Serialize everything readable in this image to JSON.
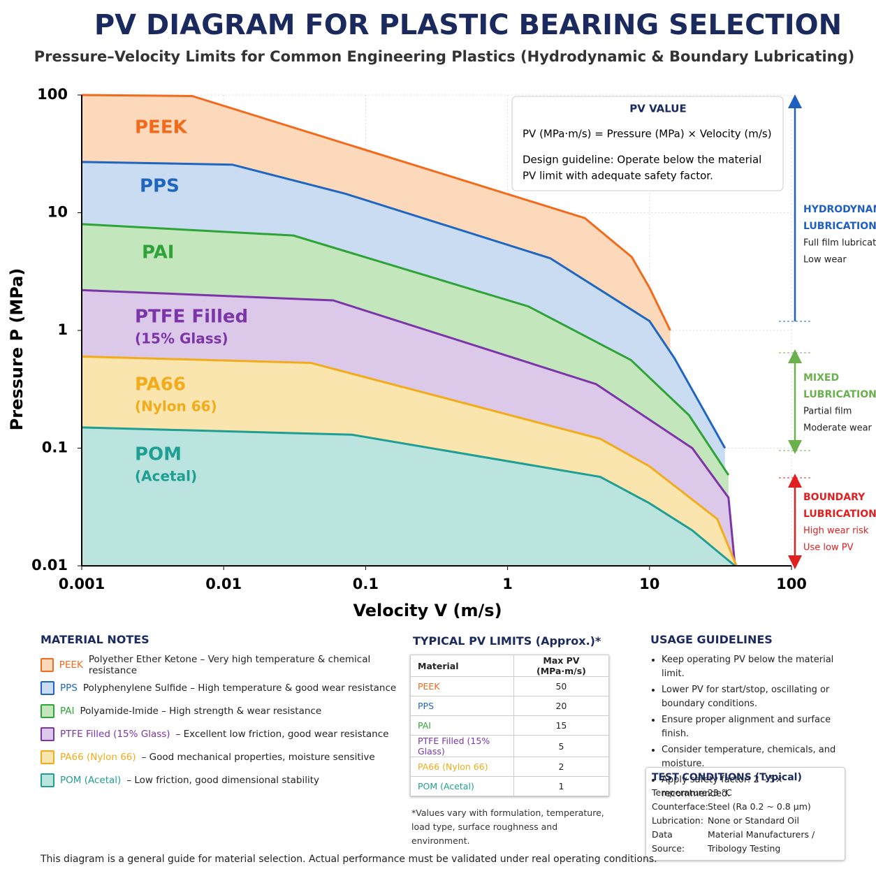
{
  "chart_data": {
    "type": "area",
    "title": "PV DIAGRAM FOR PLASTIC BEARING SELECTION",
    "subtitle": "Pressure–Velocity Limits for Common Engineering Plastics (Hydrodynamic & Boundary Lubricating)",
    "x_label": "Velocity V (m/s)",
    "y_label": "Pressure P (MPa)",
    "log_x": true,
    "log_y": true,
    "grid": true,
    "xlim": [
      0.001,
      100
    ],
    "xticks": [
      0.001,
      0.01,
      0.1,
      1,
      10,
      100
    ],
    "ylim": [
      0.01,
      100
    ],
    "yticks": [
      0.01,
      0.1,
      1,
      10,
      100
    ],
    "series": [
      {
        "name": "PEEK",
        "color": "#f26a1b",
        "fill": "#fcd9bb",
        "x": [
          0.001,
          0.006,
          3.5,
          7.5,
          10,
          14
        ],
        "values": [
          100,
          98,
          9,
          4.2,
          2.3,
          1
        ]
      },
      {
        "name": "PPS",
        "color": "#1f66c1",
        "fill": "#cadcf1",
        "x": [
          0.001,
          0.0115,
          0.072,
          2,
          10,
          15,
          34
        ],
        "values": [
          27,
          25.6,
          14.5,
          4.1,
          1.2,
          0.58,
          0.1
        ]
      },
      {
        "name": "PAI",
        "color": "#2ea337",
        "fill": "#c3e6bc",
        "x": [
          0.001,
          0.031,
          1.4,
          7.4,
          19,
          36
        ],
        "values": [
          8,
          6.4,
          1.6,
          0.56,
          0.19,
          0.059
        ]
      },
      {
        "name": "PTFE Filled",
        "sublabel": "(15% Glass)",
        "color": "#7b35a8",
        "fill": "#dcc8e8",
        "x": [
          0.001,
          0.059,
          4.2,
          20,
          36,
          40
        ],
        "values": [
          2.2,
          1.8,
          0.35,
          0.1,
          0.038,
          0.01
        ]
      },
      {
        "name": "PA66",
        "sublabel": "(Nylon 66)",
        "color": "#f2ab1a",
        "fill": "#fbe5ae",
        "x": [
          0.001,
          0.041,
          4.5,
          10,
          30,
          41
        ],
        "values": [
          0.6,
          0.53,
          0.12,
          0.07,
          0.025,
          0.01
        ]
      },
      {
        "name": "POM",
        "sublabel": "(Acetal)",
        "color": "#1f9e93",
        "fill": "#bce4df",
        "x": [
          0.001,
          0.08,
          4.5,
          10,
          20,
          40
        ],
        "values": [
          0.15,
          0.13,
          0.057,
          0.034,
          0.02,
          0.01
        ]
      }
    ]
  },
  "pv_box": {
    "title": "PV VALUE",
    "formula": "PV (MPa·m/s) = Pressure (MPa) × Velocity (m/s)",
    "guideline": [
      "Design guideline: Operate below the material",
      "PV limit with adequate safety factor."
    ]
  },
  "zones": [
    {
      "title": [
        "HYDRODYNAMIC",
        "LUBRICATION"
      ],
      "notes": [
        "Full film lubrication",
        "Low wear"
      ]
    },
    {
      "title": [
        "MIXED",
        "LUBRICATION"
      ],
      "notes": [
        "Partial film",
        "Moderate wear"
      ]
    },
    {
      "title": [
        "BOUNDARY",
        "LUBRICATION"
      ],
      "notes": [
        "High wear risk",
        "Use low PV"
      ]
    }
  ],
  "material_notes": {
    "title": "MATERIAL NOTES",
    "items": [
      {
        "name": "PEEK",
        "desc": "Polyether Ether Ketone – Very high temperature & chemical resistance"
      },
      {
        "name": "PPS",
        "desc": "Polyphenylene Sulfide – High temperature & good wear resistance"
      },
      {
        "name": "PAI",
        "desc": "Polyamide-Imide – High strength & wear resistance"
      },
      {
        "name": "PTFE Filled (15% Glass)",
        "desc": "– Excellent low friction, good wear resistance"
      },
      {
        "name": "PA66 (Nylon 66)",
        "desc": "– Good mechanical properties, moisture sensitive"
      },
      {
        "name": "POM (Acetal)",
        "desc": "– Low friction, good dimensional stability"
      }
    ]
  },
  "table": {
    "title": "TYPICAL PV LIMITS (Approx.)*",
    "header": [
      "Material",
      "Max PV (MPa·m/s)"
    ],
    "rows": [
      [
        "PEEK",
        50
      ],
      [
        "PPS",
        20
      ],
      [
        "PAI",
        15
      ],
      [
        "PTFE Filled (15% Glass)",
        5
      ],
      [
        "PA66 (Nylon 66)",
        2
      ],
      [
        "POM (Acetal)",
        1
      ]
    ],
    "footnote": "*Values vary with formulation, temperature, load type, surface roughness and environment."
  },
  "usage": {
    "title": "USAGE GUIDELINES",
    "items": [
      "Keep operating PV below the material limit.",
      "Lower PV for start/stop, oscillating or boundary conditions.",
      "Ensure proper alignment and surface finish.",
      "Consider temperature, chemicals, and moisture.",
      "Apply safety factor: 2 – 5× recommended."
    ]
  },
  "test": {
    "title": "TEST CONDITIONS (Typical)",
    "rows": [
      [
        "Temperature:",
        "23 °C"
      ],
      [
        "Counterface:",
        "Steel (Ra 0.2 ~ 0.8 µm)"
      ],
      [
        "Lubrication:",
        "None or Standard Oil"
      ],
      [
        "Data Source:",
        "Material Manufacturers / Tribology Testing"
      ]
    ]
  },
  "footer": "This diagram is a general guide for material selection. Actual performance must be validated under real operating conditions."
}
